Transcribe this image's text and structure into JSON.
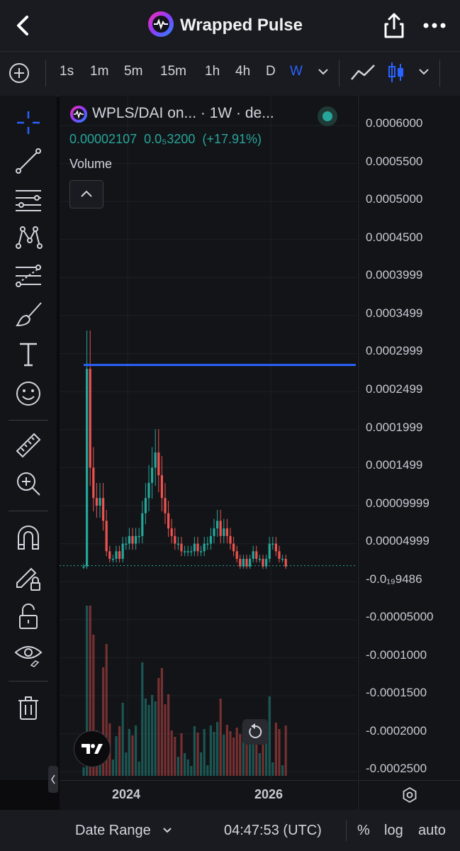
{
  "header": {
    "title": "Wrapped Pulse",
    "icons": [
      "back-arrow-icon",
      "wrapped-pulse-logo-icon",
      "share-icon",
      "more-icon"
    ]
  },
  "toolbar": {
    "timeframes": [
      "1s",
      "1m",
      "5m",
      "15m",
      "1h",
      "4h",
      "D",
      "W"
    ],
    "active_timeframe": "W",
    "icons": [
      "add-icon",
      "chevron-down-icon",
      "line-chart-icon",
      "candles-icon",
      "chevron-down-icon"
    ]
  },
  "tools": [
    "crosshair-icon",
    "trend-line-icon",
    "horizontal-lines-icon",
    "pattern-icon",
    "fib-icon",
    "brush-icon",
    "text-icon",
    "emoji-icon",
    "ruler-icon",
    "zoom-in-icon",
    "magnet-icon",
    "lock-drawing-icon",
    "unlock-icon",
    "eye-icon",
    "trash-icon"
  ],
  "legend": {
    "symbol": "WPLS/DAI on... · 1W · de...",
    "last": "0.00002107",
    "change": "0.0₅3200",
    "change_pct": "(+17.91%)",
    "volume_label": "Volume"
  },
  "price_axis": {
    "labels": [
      "0.0006000",
      "0.0005500",
      "0.0005000",
      "0.0004500",
      "0.0003999",
      "0.0003499",
      "0.0002999",
      "0.0002499",
      "0.0001999",
      "0.0001499",
      "0.00009999",
      "0.00004999",
      "-0.0₁₉9486",
      "-0.00005000",
      "-0.0001000",
      "-0.0001500",
      "-0.0002000",
      "-0.0002500"
    ]
  },
  "time_axis": {
    "labels": [
      "2024",
      "2026"
    ]
  },
  "bottom_bar": {
    "date_range": "Date Range",
    "clock": "04:47:53 (UTC)",
    "percent": "%",
    "log": "log",
    "auto": "auto"
  },
  "colors": {
    "up": "#26a69a",
    "down": "#ef5350",
    "accent": "#2962ff",
    "background": "#131418"
  },
  "chart_data": {
    "type": "candlestick",
    "interval": "1W",
    "horizontal_line_value": 0.000285,
    "last_price": 2.107e-05,
    "x_ticks": [
      "2024",
      "2026"
    ],
    "approx_close_path": [
      [
        0,
        2e-05
      ],
      [
        1,
        0.00028
      ],
      [
        2,
        0.00015
      ],
      [
        3,
        0.00011
      ],
      [
        4,
        0.0001
      ],
      [
        5,
        0.00011
      ],
      [
        6,
        8e-05
      ],
      [
        7,
        4e-05
      ],
      [
        8,
        3e-05
      ],
      [
        9,
        3e-05
      ],
      [
        10,
        4e-05
      ],
      [
        11,
        3e-05
      ],
      [
        12,
        5e-05
      ],
      [
        13,
        5e-05
      ],
      [
        14,
        6e-05
      ],
      [
        15,
        5e-05
      ],
      [
        16,
        6e-05
      ],
      [
        17,
        6e-05
      ],
      [
        18,
        9e-05
      ],
      [
        19,
        0.00011
      ],
      [
        20,
        0.00013
      ],
      [
        21,
        0.00015
      ],
      [
        22,
        0.00017
      ],
      [
        23,
        0.00014
      ],
      [
        24,
        0.00011
      ],
      [
        25,
        9e-05
      ],
      [
        26,
        7e-05
      ],
      [
        27,
        6e-05
      ],
      [
        28,
        5e-05
      ],
      [
        29,
        5e-05
      ],
      [
        30,
        4e-05
      ],
      [
        31,
        4e-05
      ],
      [
        32,
        4e-05
      ],
      [
        33,
        4e-05
      ],
      [
        34,
        5e-05
      ],
      [
        35,
        4e-05
      ],
      [
        36,
        4e-05
      ],
      [
        37,
        5e-05
      ],
      [
        38,
        5e-05
      ],
      [
        39,
        6e-05
      ],
      [
        40,
        7e-05
      ],
      [
        41,
        8e-05
      ],
      [
        42,
        6e-05
      ],
      [
        43,
        7e-05
      ],
      [
        44,
        6e-05
      ],
      [
        45,
        5e-05
      ],
      [
        46,
        4e-05
      ],
      [
        47,
        3e-05
      ],
      [
        48,
        2e-05
      ],
      [
        49,
        3e-05
      ],
      [
        50,
        2e-05
      ],
      [
        51,
        3e-05
      ],
      [
        52,
        4e-05
      ],
      [
        53,
        3e-05
      ],
      [
        54,
        3e-05
      ],
      [
        55,
        2e-05
      ],
      [
        56,
        3e-05
      ],
      [
        57,
        5e-05
      ],
      [
        58,
        5e-05
      ],
      [
        59,
        4e-05
      ],
      [
        60,
        3e-05
      ],
      [
        61,
        3e-05
      ],
      [
        62,
        2e-05
      ]
    ]
  }
}
